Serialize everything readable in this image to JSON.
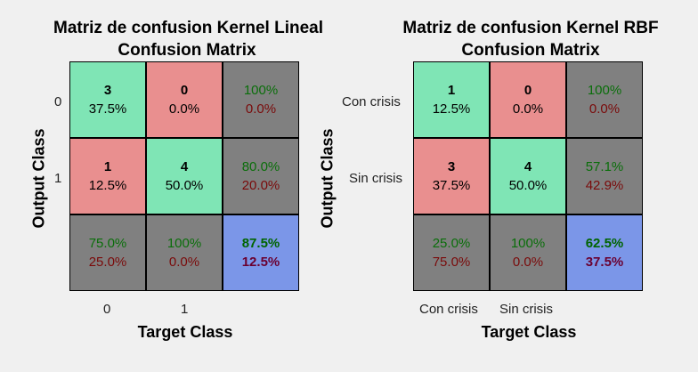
{
  "chart_data": [
    {
      "type": "table",
      "title_line1": "Matriz de confusion Kernel Lineal",
      "title_line2": "Confusion Matrix",
      "xlabel": "Target Class",
      "ylabel": "Output Class",
      "row_labels": [
        "0",
        "1"
      ],
      "col_labels": [
        "0",
        "1"
      ],
      "cells": [
        [
          {
            "count": "3",
            "pct": "37.5%",
            "kind": "green"
          },
          {
            "count": "0",
            "pct": "0.0%",
            "kind": "red"
          },
          {
            "top": "100%",
            "bottom": "0.0%",
            "kind": "gray"
          }
        ],
        [
          {
            "count": "1",
            "pct": "12.5%",
            "kind": "red"
          },
          {
            "count": "4",
            "pct": "50.0%",
            "kind": "green"
          },
          {
            "top": "80.0%",
            "bottom": "20.0%",
            "kind": "gray"
          }
        ],
        [
          {
            "top": "75.0%",
            "bottom": "25.0%",
            "kind": "gray"
          },
          {
            "top": "100%",
            "bottom": "0.0%",
            "kind": "gray"
          },
          {
            "top": "87.5%",
            "bottom": "12.5%",
            "kind": "blue"
          }
        ]
      ]
    },
    {
      "type": "table",
      "title_line1": "Matriz de confusion Kernel RBF",
      "title_line2": "Confusion Matrix",
      "xlabel": "Target Class",
      "ylabel": "Output Class",
      "row_labels": [
        "Con crisis",
        "Sin crisis"
      ],
      "col_labels": [
        "Con crisis",
        "Sin crisis"
      ],
      "cells": [
        [
          {
            "count": "1",
            "pct": "12.5%",
            "kind": "green"
          },
          {
            "count": "0",
            "pct": "0.0%",
            "kind": "red"
          },
          {
            "top": "100%",
            "bottom": "0.0%",
            "kind": "gray"
          }
        ],
        [
          {
            "count": "3",
            "pct": "37.5%",
            "kind": "red"
          },
          {
            "count": "4",
            "pct": "50.0%",
            "kind": "green"
          },
          {
            "top": "57.1%",
            "bottom": "42.9%",
            "kind": "gray"
          }
        ],
        [
          {
            "top": "25.0%",
            "bottom": "75.0%",
            "kind": "gray"
          },
          {
            "top": "100%",
            "bottom": "0.0%",
            "kind": "gray"
          },
          {
            "top": "62.5%",
            "bottom": "37.5%",
            "kind": "blue"
          }
        ]
      ]
    }
  ]
}
